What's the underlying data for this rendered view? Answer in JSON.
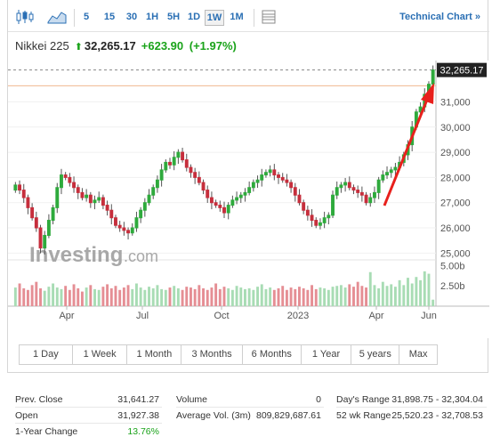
{
  "toolbar": {
    "chart_icons": [
      "candlestick-icon",
      "area-chart-icon"
    ],
    "intervals": [
      "5",
      "15",
      "30",
      "1H",
      "5H",
      "1D",
      "1W",
      "1M"
    ],
    "active_interval": "1W",
    "settings_icon": "table-icon",
    "technical_chart": "Technical Chart »"
  },
  "quote": {
    "name": "Nikkei 225",
    "arrow": "⬆",
    "price": "32,265.17",
    "change": "+623.90",
    "change_pct": "(+1.97%)",
    "up_color": "#1aa31a"
  },
  "chart_data": {
    "type": "candlestick",
    "y_ticks": [
      "31,000",
      "30,000",
      "29,000",
      "28,000",
      "27,000",
      "26,000",
      "25,000"
    ],
    "y_range": [
      24800,
      32500
    ],
    "x_ticks": [
      "Apr",
      "Jul",
      "Oct",
      "2023",
      "Apr",
      "Jun"
    ],
    "last_price_label": "32,265.17",
    "watermark": "Investing",
    "watermark_suffix": ".com",
    "volume_ticks": [
      "5.00b",
      "2.50b"
    ],
    "volume_range": [
      0,
      5.6
    ],
    "closes": [
      27700,
      27500,
      27200,
      26800,
      26400,
      26000,
      25200,
      25700,
      26300,
      26800,
      27600,
      28100,
      28000,
      27800,
      27600,
      27400,
      27200,
      27300,
      27000,
      27100,
      27200,
      26900,
      26700,
      26400,
      26100,
      26000,
      25900,
      25800,
      26000,
      26400,
      26700,
      27000,
      27300,
      27600,
      27900,
      28300,
      28600,
      28500,
      28800,
      29000,
      28700,
      28400,
      28200,
      28000,
      27800,
      27500,
      27200,
      27000,
      26900,
      26800,
      26600,
      26900,
      27100,
      27200,
      27300,
      27400,
      27600,
      27800,
      27900,
      28100,
      28200,
      28300,
      28100,
      28000,
      27900,
      27800,
      27600,
      27300,
      27000,
      26700,
      26500,
      26300,
      26100,
      26200,
      26400,
      26500,
      27300,
      27600,
      27700,
      27800,
      27600,
      27500,
      27400,
      27300,
      27000,
      27200,
      27400,
      27900,
      28100,
      28200,
      28300,
      28400,
      28600,
      28900,
      29300,
      30000,
      30600,
      30800,
      31300,
      31700,
      32265
    ],
    "volumes": [
      2.3,
      2.8,
      2.2,
      2.0,
      2.6,
      3.0,
      2.2,
      1.9,
      2.4,
      2.8,
      2.3,
      2.1,
      2.5,
      2.0,
      2.7,
      2.2,
      1.8,
      2.3,
      2.6,
      2.1,
      2.0,
      2.4,
      2.7,
      2.2,
      2.5,
      2.0,
      2.3,
      2.6,
      2.1,
      2.8,
      2.3,
      2.0,
      2.4,
      2.2,
      2.6,
      2.1,
      2.0,
      2.3,
      2.5,
      2.2,
      2.0,
      2.4,
      2.3,
      2.1,
      2.6,
      2.2,
      2.0,
      2.3,
      2.8,
      2.1,
      2.4,
      2.2,
      2.0,
      2.5,
      2.3,
      2.1,
      2.2,
      2.0,
      2.4,
      2.7,
      2.1,
      2.3,
      2.0,
      2.2,
      2.5,
      2.0,
      2.3,
      2.1,
      2.4,
      2.2,
      2.0,
      2.6,
      2.1,
      2.3,
      2.2,
      2.0,
      2.4,
      2.5,
      2.6,
      2.3,
      2.7,
      2.4,
      3.0,
      2.5,
      2.3,
      4.2,
      2.6,
      2.2,
      3.0,
      2.5,
      2.7,
      2.4,
      3.2,
      2.6,
      3.5,
      2.8,
      3.6,
      3.2,
      4.3,
      4.0,
      0.8
    ],
    "up_color": "#2eaa3c",
    "down_color": "#c62e3c",
    "vol_up_color": "#a8dcb4",
    "vol_down_color": "#e58e94"
  },
  "ranges": [
    "1 Day",
    "1 Week",
    "1 Month",
    "3 Months",
    "6 Months",
    "1 Year",
    "5 years",
    "Max"
  ],
  "stats": {
    "rows": [
      [
        {
          "label": "Prev. Close",
          "value": "31,641.27"
        },
        {
          "label": "Volume",
          "value": "0"
        },
        {
          "label": "Day's Range",
          "value": "31,898.75 - 32,304.04"
        }
      ],
      [
        {
          "label": "Open",
          "value": "31,927.38"
        },
        {
          "label": "Average Vol. (3m)",
          "value": "809,829,687.61"
        },
        {
          "label": "52 wk Range",
          "value": "25,520.23 - 32,708.53"
        }
      ],
      [
        {
          "label": "1-Year Change",
          "value": "13.76%"
        }
      ]
    ]
  }
}
